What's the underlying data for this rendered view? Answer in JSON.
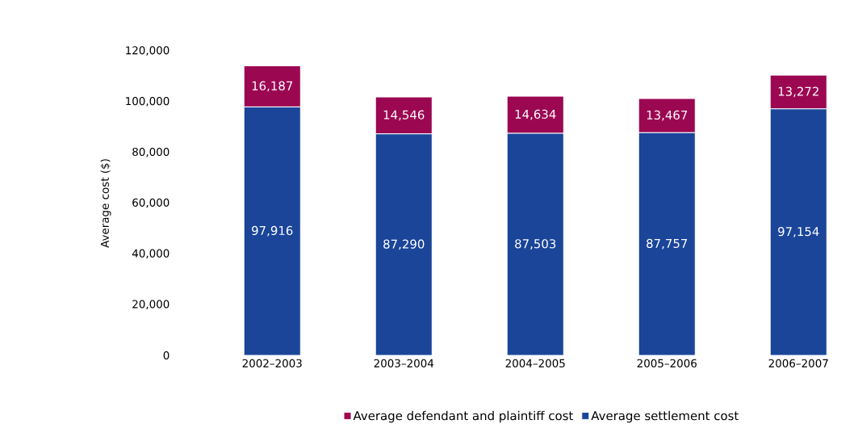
{
  "chart_data": {
    "type": "bar",
    "stacked": true,
    "ylabel": "Average cost ($)",
    "categories": [
      "2002–2003",
      "2003–2004",
      "2004–2005",
      "2005–2006",
      "2006–2007"
    ],
    "series": [
      {
        "name": "Average settlement cost",
        "color": "#1a4599",
        "values": [
          97916,
          87290,
          87503,
          87757,
          97154
        ],
        "value_labels": [
          "97,916",
          "87,290",
          "87,503",
          "87,757",
          "97,154"
        ]
      },
      {
        "name": "Average defendant and plaintiff cost",
        "color": "#9c0752",
        "values": [
          16187,
          14546,
          14634,
          13467,
          13272
        ],
        "value_labels": [
          "16,187",
          "14,546",
          "14,634",
          "13,467",
          "13,272"
        ]
      }
    ],
    "ylim": [
      0,
      120000
    ],
    "yticks": [
      0,
      {
        "value": 20000,
        "label": "20,000"
      },
      {
        "value": 40000,
        "label": "40,000"
      },
      {
        "value": 60000,
        "label": "60,000"
      },
      {
        "value": 80000,
        "label": "80,000"
      },
      {
        "value": 100000,
        "label": "100,000"
      },
      {
        "value": 120000,
        "label": "120,000"
      }
    ],
    "grid": false,
    "legend": "bottom"
  }
}
